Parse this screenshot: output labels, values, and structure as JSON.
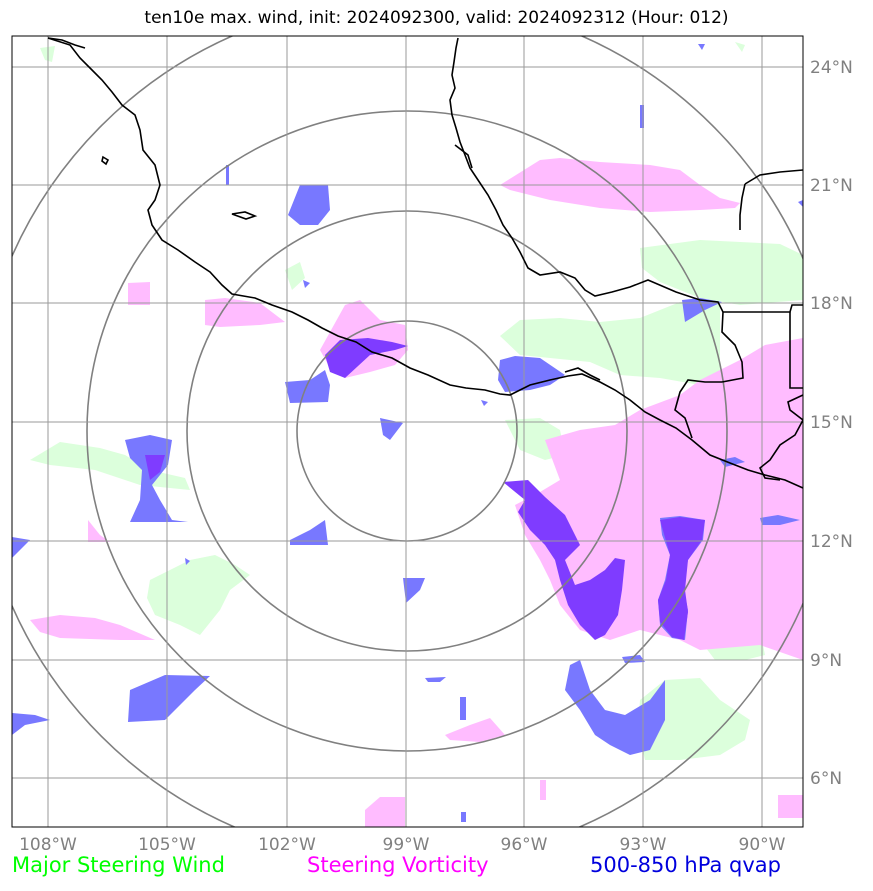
{
  "title": "ten10e max. wind, init: 2024092300, valid: 2024092312 (Hour: 012)",
  "longitude_labels": [
    "108°W",
    "105°W",
    "102°W",
    "99°W",
    "96°W",
    "93°W",
    "90°W"
  ],
  "latitude_labels": [
    "24°N",
    "21°N",
    "18°N",
    "15°N",
    "12°N",
    "9°N",
    "6°N"
  ],
  "legend": {
    "green": {
      "label": "Major Steering Wind",
      "color": "#00ff00"
    },
    "pink": {
      "label": "Steering Vorticity",
      "color": "#ff00ff"
    },
    "blue": {
      "label": "500-850 hPa qvap",
      "color": "#0000dd"
    }
  },
  "fill_colors": {
    "green": "#dcffdc",
    "pink": "#ffbcff",
    "blue": "#7878ff",
    "overlap": "#7f3cff"
  }
}
